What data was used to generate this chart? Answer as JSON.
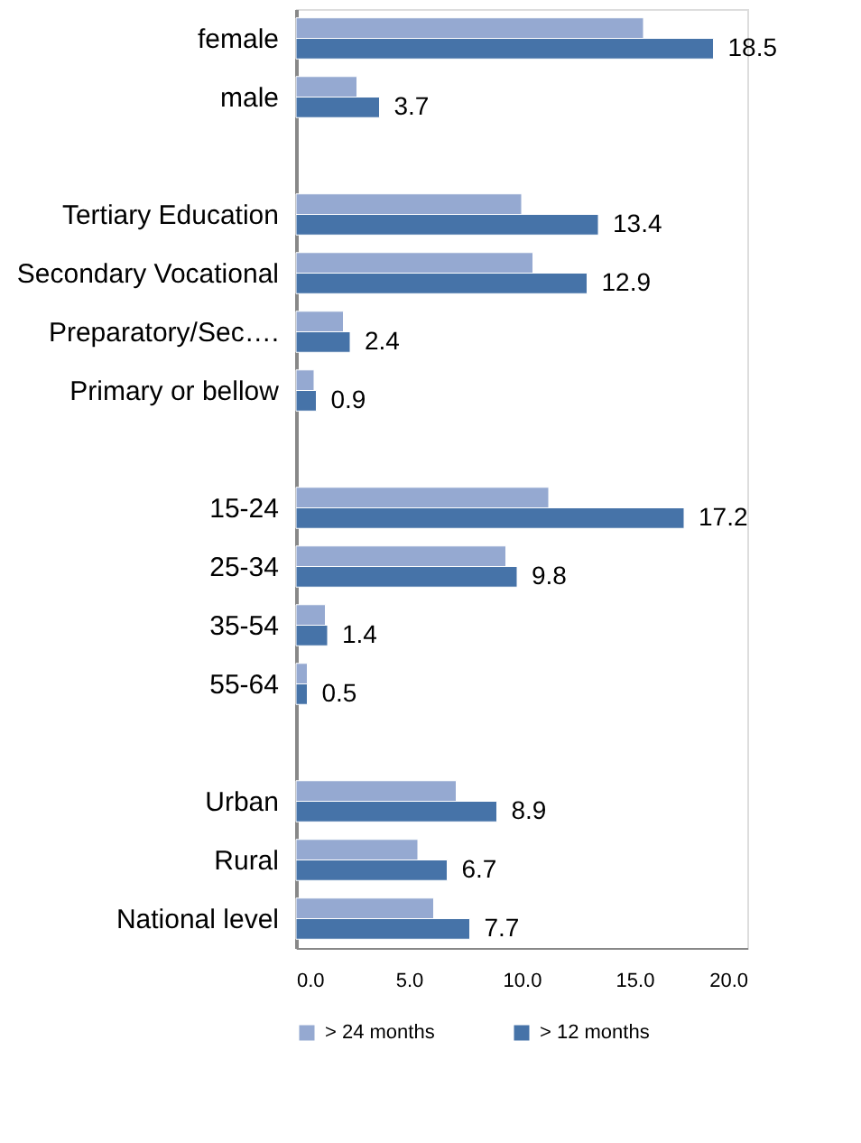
{
  "chart_data": {
    "type": "bar",
    "orientation": "horizontal",
    "categories": [
      "female",
      "male",
      null,
      "Tertiary Education",
      "Secondary Vocational",
      "Preparatory/Sec….",
      "Primary or bellow",
      null,
      "15-24",
      "25-34",
      "35-54",
      "55-64",
      null,
      "Urban",
      "Rural",
      "National level"
    ],
    "series": [
      {
        "name": "> 24 months",
        "color": "#95a9d1",
        "values": [
          15.4,
          2.7,
          null,
          10.0,
          10.5,
          2.1,
          0.8,
          null,
          11.2,
          9.3,
          1.3,
          0.5,
          null,
          7.1,
          5.4,
          6.1
        ]
      },
      {
        "name": "> 12 months",
        "color": "#4673a8",
        "values": [
          18.5,
          3.7,
          null,
          13.4,
          12.9,
          2.4,
          0.9,
          null,
          17.2,
          9.8,
          1.4,
          0.5,
          null,
          8.9,
          6.7,
          7.7
        ],
        "value_labels": [
          "18.5",
          "3.7",
          null,
          "13.4",
          "12.9",
          "2.4",
          "0.9",
          null,
          "17.2",
          "9.8",
          "1.4",
          "0.5",
          null,
          "8.9",
          "6.7",
          "7.7"
        ]
      }
    ],
    "xlim": [
      0,
      20
    ],
    "xticks": [
      {
        "value": 0,
        "label": "0.0"
      },
      {
        "value": 5,
        "label": "5.0"
      },
      {
        "value": 10,
        "label": "10.0"
      },
      {
        "value": 15,
        "label": "15.0"
      },
      {
        "value": 20,
        "label": "20.0"
      }
    ],
    "grid": false,
    "legend": "bottom"
  }
}
